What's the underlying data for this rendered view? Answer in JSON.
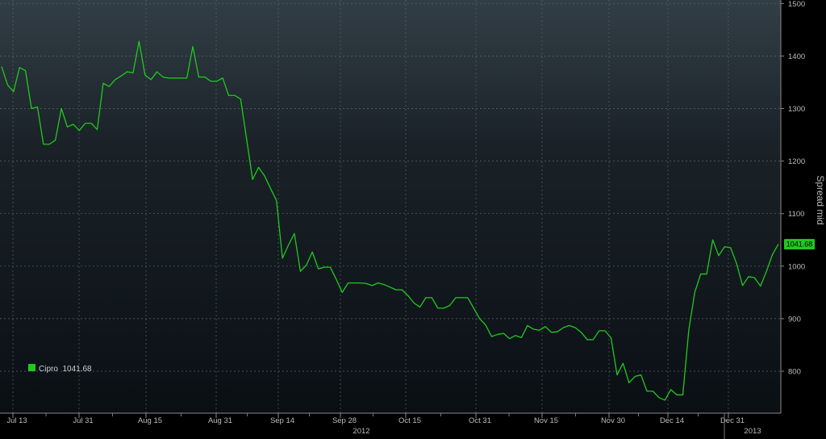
{
  "chart_data": {
    "type": "line",
    "title": "",
    "xlabel": "",
    "ylabel": "Spread mid",
    "ylim": [
      740,
      1500
    ],
    "grid": true,
    "legend_position": "bottom-left",
    "last_value_label": "1041.68",
    "x_tick_labels": [
      "Jul 13",
      "Jul 31",
      "Aug 15",
      "Aug 31",
      "Sep 14",
      "Sep 28",
      "Oct 15",
      "Oct 31",
      "Nov 15",
      "Nov 30",
      "Dec 14",
      "Dec 31"
    ],
    "year_labels": [
      "2012",
      "2013"
    ],
    "y_ticks": [
      800,
      900,
      1000,
      1100,
      1200,
      1300,
      1400,
      1500
    ],
    "series": [
      {
        "name": "Cipro",
        "legend_label": "Cipro  1041.68",
        "color": "#22c81e",
        "values": [
          1380,
          1345,
          1332,
          1378,
          1372,
          1300,
          1303,
          1232,
          1232,
          1240,
          1300,
          1265,
          1270,
          1258,
          1272,
          1272,
          1260,
          1348,
          1342,
          1355,
          1362,
          1370,
          1368,
          1428,
          1364,
          1355,
          1370,
          1360,
          1358,
          1358,
          1358,
          1358,
          1418,
          1360,
          1360,
          1352,
          1352,
          1358,
          1325,
          1325,
          1318,
          1242,
          1165,
          1188,
          1172,
          1148,
          1125,
          1015,
          1040,
          1062,
          990,
          1002,
          1027,
          995,
          998,
          998,
          975,
          950,
          968,
          968,
          968,
          967,
          963,
          968,
          965,
          960,
          955,
          955,
          944,
          930,
          922,
          940,
          940,
          920,
          920,
          925,
          940,
          940,
          940,
          920,
          900,
          888,
          866,
          870,
          872,
          862,
          868,
          864,
          887,
          880,
          878,
          885,
          874,
          875,
          883,
          887,
          883,
          874,
          860,
          860,
          877,
          877,
          863,
          793,
          815,
          778,
          790,
          793,
          762,
          762,
          750,
          745,
          765,
          755,
          755,
          878,
          950,
          985,
          985,
          1050,
          1020,
          1037,
          1035,
          1005,
          963,
          980,
          978,
          962,
          990,
          1022,
          1042
        ],
        "last": 1041.68
      }
    ]
  }
}
